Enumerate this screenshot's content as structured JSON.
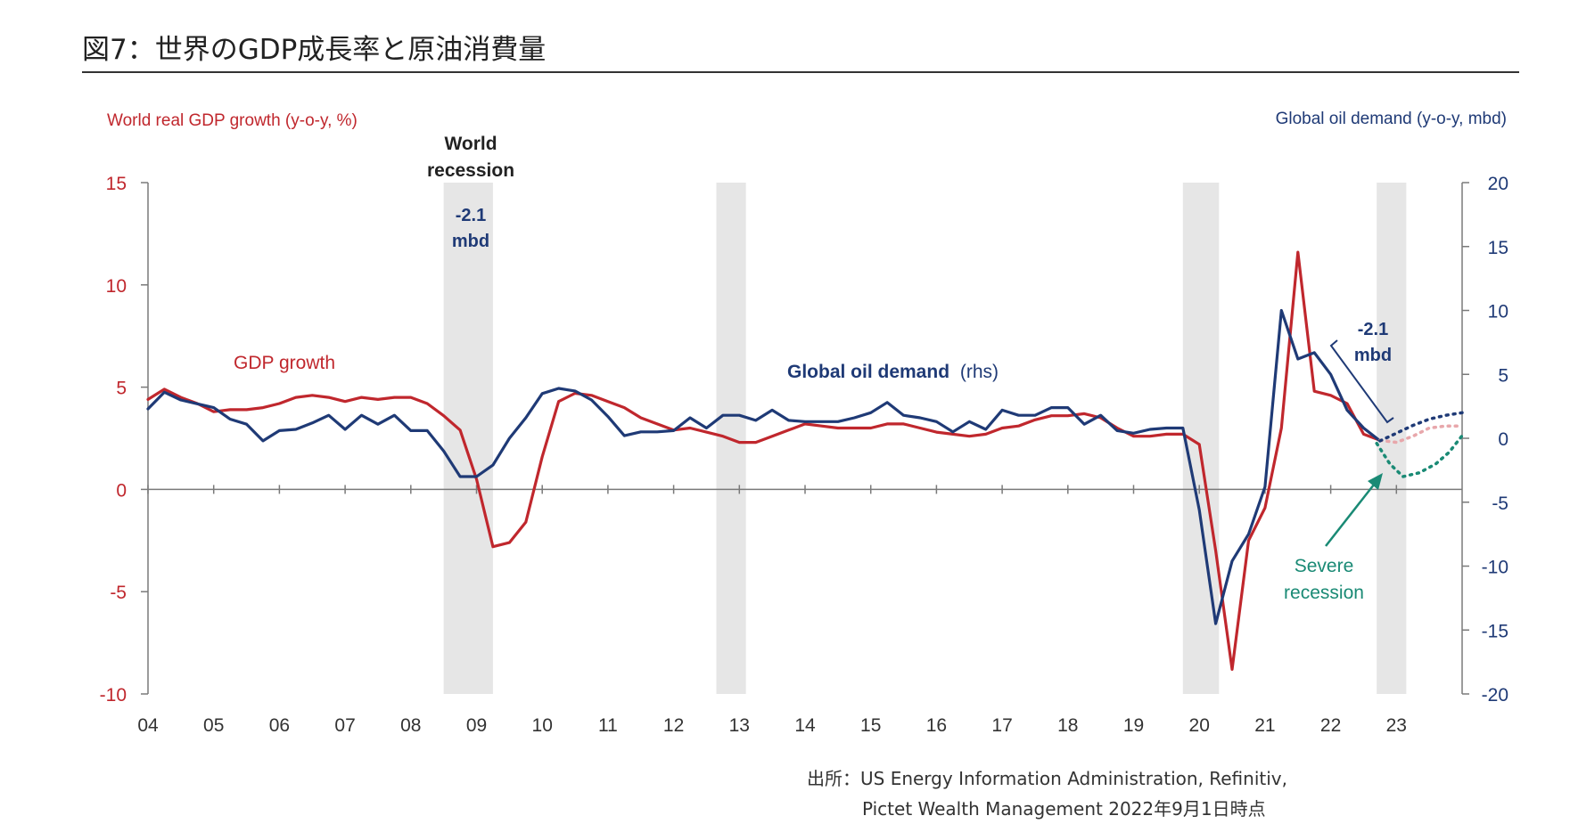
{
  "figure": {
    "title": "図7：世界のGDP成長率と原油消費量",
    "source_line1": "出所：US Energy Information Administration, Refinitiv,",
    "source_line2": "Pictet Wealth Management  2022年9月1日時点"
  },
  "annotations": {
    "world_recession_line1": "World",
    "world_recession_line2": "recession",
    "wr_value": "-2.1",
    "wr_unit": "mbd",
    "recent_value": "-2.1",
    "recent_unit": "mbd",
    "gdp_label": "GDP growth",
    "oil_label_bold": "Global oil demand",
    "oil_label_rhs": "(rhs)",
    "severe_line1": "Severe",
    "severe_line2": "recession"
  },
  "chart_data": {
    "type": "line",
    "x_tick_labels": [
      "04",
      "05",
      "06",
      "07",
      "08",
      "09",
      "10",
      "11",
      "12",
      "13",
      "14",
      "15",
      "16",
      "17",
      "18",
      "19",
      "20",
      "21",
      "22",
      "23"
    ],
    "xlim": [
      2004,
      2024
    ],
    "left_axis": {
      "label": "World real GDP growth (y-o-y, %)",
      "range": [
        -10,
        15
      ],
      "ticks": [
        15,
        10,
        5,
        0,
        -5,
        -10
      ]
    },
    "right_axis": {
      "label": "Global oil demand (y-o-y, mbd)",
      "range": [
        -20,
        20
      ],
      "ticks": [
        20,
        15,
        10,
        5,
        0,
        -5,
        -10,
        -15,
        -20
      ]
    },
    "shaded_periods": [
      [
        2008.5,
        2009.25
      ],
      [
        2012.65,
        2013.1
      ],
      [
        2019.75,
        2020.3
      ],
      [
        2022.7,
        2023.15
      ]
    ],
    "series": [
      {
        "name": "GDP growth",
        "axis": "left",
        "color": "#c0272d",
        "points": [
          [
            2004.0,
            4.4
          ],
          [
            2004.25,
            4.9
          ],
          [
            2004.5,
            4.5
          ],
          [
            2004.75,
            4.2
          ],
          [
            2005.0,
            3.8
          ],
          [
            2005.25,
            3.9
          ],
          [
            2005.5,
            3.9
          ],
          [
            2005.75,
            4.0
          ],
          [
            2006.0,
            4.2
          ],
          [
            2006.25,
            4.5
          ],
          [
            2006.5,
            4.6
          ],
          [
            2006.75,
            4.5
          ],
          [
            2007.0,
            4.3
          ],
          [
            2007.25,
            4.5
          ],
          [
            2007.5,
            4.4
          ],
          [
            2007.75,
            4.5
          ],
          [
            2008.0,
            4.5
          ],
          [
            2008.25,
            4.2
          ],
          [
            2008.5,
            3.6
          ],
          [
            2008.75,
            2.9
          ],
          [
            2009.0,
            0.5
          ],
          [
            2009.25,
            -2.8
          ],
          [
            2009.5,
            -2.6
          ],
          [
            2009.75,
            -1.6
          ],
          [
            2010.0,
            1.6
          ],
          [
            2010.25,
            4.3
          ],
          [
            2010.5,
            4.7
          ],
          [
            2010.75,
            4.6
          ],
          [
            2011.0,
            4.3
          ],
          [
            2011.25,
            4.0
          ],
          [
            2011.5,
            3.5
          ],
          [
            2011.75,
            3.2
          ],
          [
            2012.0,
            2.9
          ],
          [
            2012.25,
            3.0
          ],
          [
            2012.5,
            2.8
          ],
          [
            2012.75,
            2.6
          ],
          [
            2013.0,
            2.3
          ],
          [
            2013.25,
            2.3
          ],
          [
            2013.5,
            2.6
          ],
          [
            2013.75,
            2.9
          ],
          [
            2014.0,
            3.2
          ],
          [
            2014.25,
            3.1
          ],
          [
            2014.5,
            3.0
          ],
          [
            2014.75,
            3.0
          ],
          [
            2015.0,
            3.0
          ],
          [
            2015.25,
            3.2
          ],
          [
            2015.5,
            3.2
          ],
          [
            2015.75,
            3.0
          ],
          [
            2016.0,
            2.8
          ],
          [
            2016.25,
            2.7
          ],
          [
            2016.5,
            2.6
          ],
          [
            2016.75,
            2.7
          ],
          [
            2017.0,
            3.0
          ],
          [
            2017.25,
            3.1
          ],
          [
            2017.5,
            3.4
          ],
          [
            2017.75,
            3.6
          ],
          [
            2018.0,
            3.6
          ],
          [
            2018.25,
            3.7
          ],
          [
            2018.5,
            3.5
          ],
          [
            2018.75,
            3.0
          ],
          [
            2019.0,
            2.6
          ],
          [
            2019.25,
            2.6
          ],
          [
            2019.5,
            2.7
          ],
          [
            2019.75,
            2.7
          ],
          [
            2020.0,
            2.2
          ],
          [
            2020.25,
            -3.0
          ],
          [
            2020.5,
            -8.8
          ],
          [
            2020.75,
            -2.5
          ],
          [
            2021.0,
            -0.9
          ],
          [
            2021.25,
            3.0
          ],
          [
            2021.5,
            11.6
          ],
          [
            2021.75,
            4.8
          ],
          [
            2022.0,
            4.6
          ],
          [
            2022.25,
            4.2
          ],
          [
            2022.5,
            2.7
          ],
          [
            2022.75,
            2.4
          ]
        ]
      },
      {
        "name": "Global oil demand (rhs)",
        "axis": "right",
        "color": "#1f3a76",
        "points": [
          [
            2004.0,
            2.3
          ],
          [
            2004.25,
            3.6
          ],
          [
            2004.5,
            3.0
          ],
          [
            2004.75,
            2.7
          ],
          [
            2005.0,
            2.4
          ],
          [
            2005.25,
            1.5
          ],
          [
            2005.5,
            1.1
          ],
          [
            2005.75,
            -0.2
          ],
          [
            2006.0,
            0.6
          ],
          [
            2006.25,
            0.7
          ],
          [
            2006.5,
            1.2
          ],
          [
            2006.75,
            1.8
          ],
          [
            2007.0,
            0.7
          ],
          [
            2007.25,
            1.8
          ],
          [
            2007.5,
            1.1
          ],
          [
            2007.75,
            1.8
          ],
          [
            2008.0,
            0.6
          ],
          [
            2008.25,
            0.6
          ],
          [
            2008.5,
            -1.0
          ],
          [
            2008.75,
            -3.0
          ],
          [
            2009.0,
            -3.0
          ],
          [
            2009.25,
            -2.1
          ],
          [
            2009.5,
            0.0
          ],
          [
            2009.75,
            1.6
          ],
          [
            2010.0,
            3.5
          ],
          [
            2010.25,
            3.9
          ],
          [
            2010.5,
            3.7
          ],
          [
            2010.75,
            3.0
          ],
          [
            2011.0,
            1.7
          ],
          [
            2011.25,
            0.2
          ],
          [
            2011.5,
            0.5
          ],
          [
            2011.75,
            0.5
          ],
          [
            2012.0,
            0.6
          ],
          [
            2012.25,
            1.6
          ],
          [
            2012.5,
            0.8
          ],
          [
            2012.75,
            1.8
          ],
          [
            2013.0,
            1.8
          ],
          [
            2013.25,
            1.4
          ],
          [
            2013.5,
            2.2
          ],
          [
            2013.75,
            1.4
          ],
          [
            2014.0,
            1.3
          ],
          [
            2014.25,
            1.3
          ],
          [
            2014.5,
            1.3
          ],
          [
            2014.75,
            1.6
          ],
          [
            2015.0,
            2.0
          ],
          [
            2015.25,
            2.8
          ],
          [
            2015.5,
            1.8
          ],
          [
            2015.75,
            1.6
          ],
          [
            2016.0,
            1.3
          ],
          [
            2016.25,
            0.5
          ],
          [
            2016.5,
            1.3
          ],
          [
            2016.75,
            0.7
          ],
          [
            2017.0,
            2.2
          ],
          [
            2017.25,
            1.8
          ],
          [
            2017.5,
            1.8
          ],
          [
            2017.75,
            2.4
          ],
          [
            2018.0,
            2.4
          ],
          [
            2018.25,
            1.1
          ],
          [
            2018.5,
            1.8
          ],
          [
            2018.75,
            0.6
          ],
          [
            2019.0,
            0.4
          ],
          [
            2019.25,
            0.7
          ],
          [
            2019.5,
            0.8
          ],
          [
            2019.75,
            0.8
          ],
          [
            2020.0,
            -5.6
          ],
          [
            2020.25,
            -14.5
          ],
          [
            2020.5,
            -9.6
          ],
          [
            2020.75,
            -7.5
          ],
          [
            2021.0,
            -3.8
          ],
          [
            2021.25,
            10.0
          ],
          [
            2021.5,
            6.2
          ],
          [
            2021.75,
            6.7
          ],
          [
            2022.0,
            5.0
          ],
          [
            2022.25,
            2.2
          ],
          [
            2022.5,
            0.8
          ],
          [
            2022.75,
            -0.2
          ]
        ]
      }
    ],
    "projections": [
      {
        "name": "GDP projection",
        "axis": "left",
        "color": "#e8a7ab",
        "points": [
          [
            2022.75,
            2.4
          ],
          [
            2023.0,
            2.3
          ],
          [
            2023.25,
            2.6
          ],
          [
            2023.5,
            3.0
          ],
          [
            2023.75,
            3.1
          ],
          [
            2024.0,
            3.1
          ]
        ]
      },
      {
        "name": "Oil demand projection",
        "axis": "right",
        "color": "#1f3a76",
        "points": [
          [
            2022.75,
            -0.2
          ],
          [
            2023.0,
            0.4
          ],
          [
            2023.25,
            1.0
          ],
          [
            2023.5,
            1.5
          ],
          [
            2023.75,
            1.8
          ],
          [
            2024.0,
            2.0
          ]
        ]
      },
      {
        "name": "Severe recession",
        "axis": "right",
        "color": "#1a8a75",
        "points": [
          [
            2022.7,
            -0.4
          ],
          [
            2022.9,
            -2.0
          ],
          [
            2023.1,
            -3.0
          ],
          [
            2023.35,
            -2.7
          ],
          [
            2023.6,
            -2.0
          ],
          [
            2023.8,
            -1.1
          ],
          [
            2024.0,
            0.2
          ]
        ]
      }
    ]
  }
}
